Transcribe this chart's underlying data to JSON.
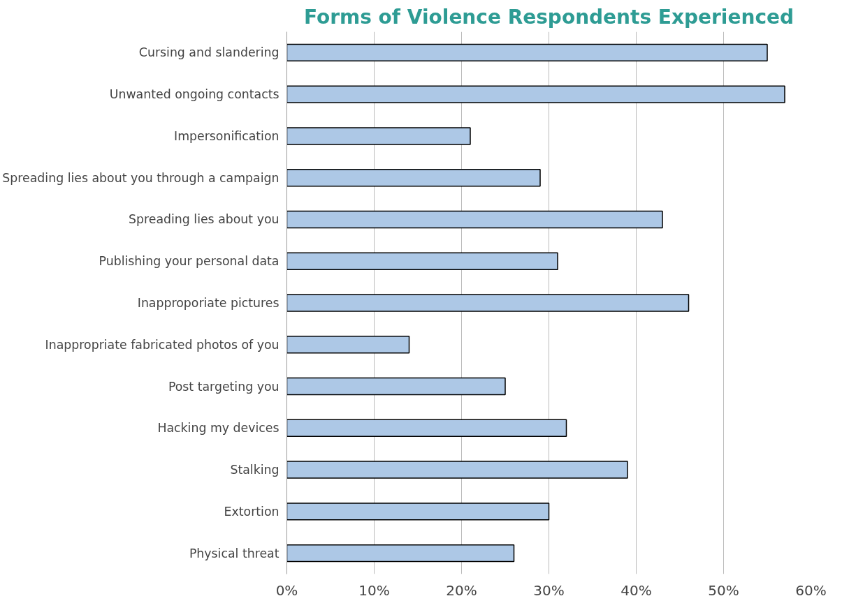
{
  "chart_data": {
    "type": "bar",
    "orientation": "horizontal",
    "title": "Forms of Violence Respondents Experienced",
    "categories": [
      "Cursing and slandering",
      "Unwanted ongoing contacts",
      "Impersonification",
      "Spreading lies about you through a campaign",
      "Spreading lies about you",
      "Publishing your personal data",
      "Inapproporiate pictures",
      "Inappropriate fabricated photos of you",
      "Post targeting you",
      "Hacking my devices",
      "Stalking",
      "Extortion",
      "Physical threat"
    ],
    "values": [
      55,
      57,
      21,
      29,
      43,
      31,
      46,
      14,
      25,
      32,
      39,
      30,
      26
    ],
    "color": "#adc8e6",
    "xlim": [
      0,
      60
    ],
    "xticks": [
      {
        "value": 0,
        "label": "0%"
      },
      {
        "value": 10,
        "label": "10%"
      },
      {
        "value": 20,
        "label": "20%"
      },
      {
        "value": 30,
        "label": "30%"
      },
      {
        "value": 40,
        "label": "40%"
      },
      {
        "value": 50,
        "label": "50%"
      },
      {
        "value": 60,
        "label": "60%"
      }
    ],
    "grid": "x"
  }
}
